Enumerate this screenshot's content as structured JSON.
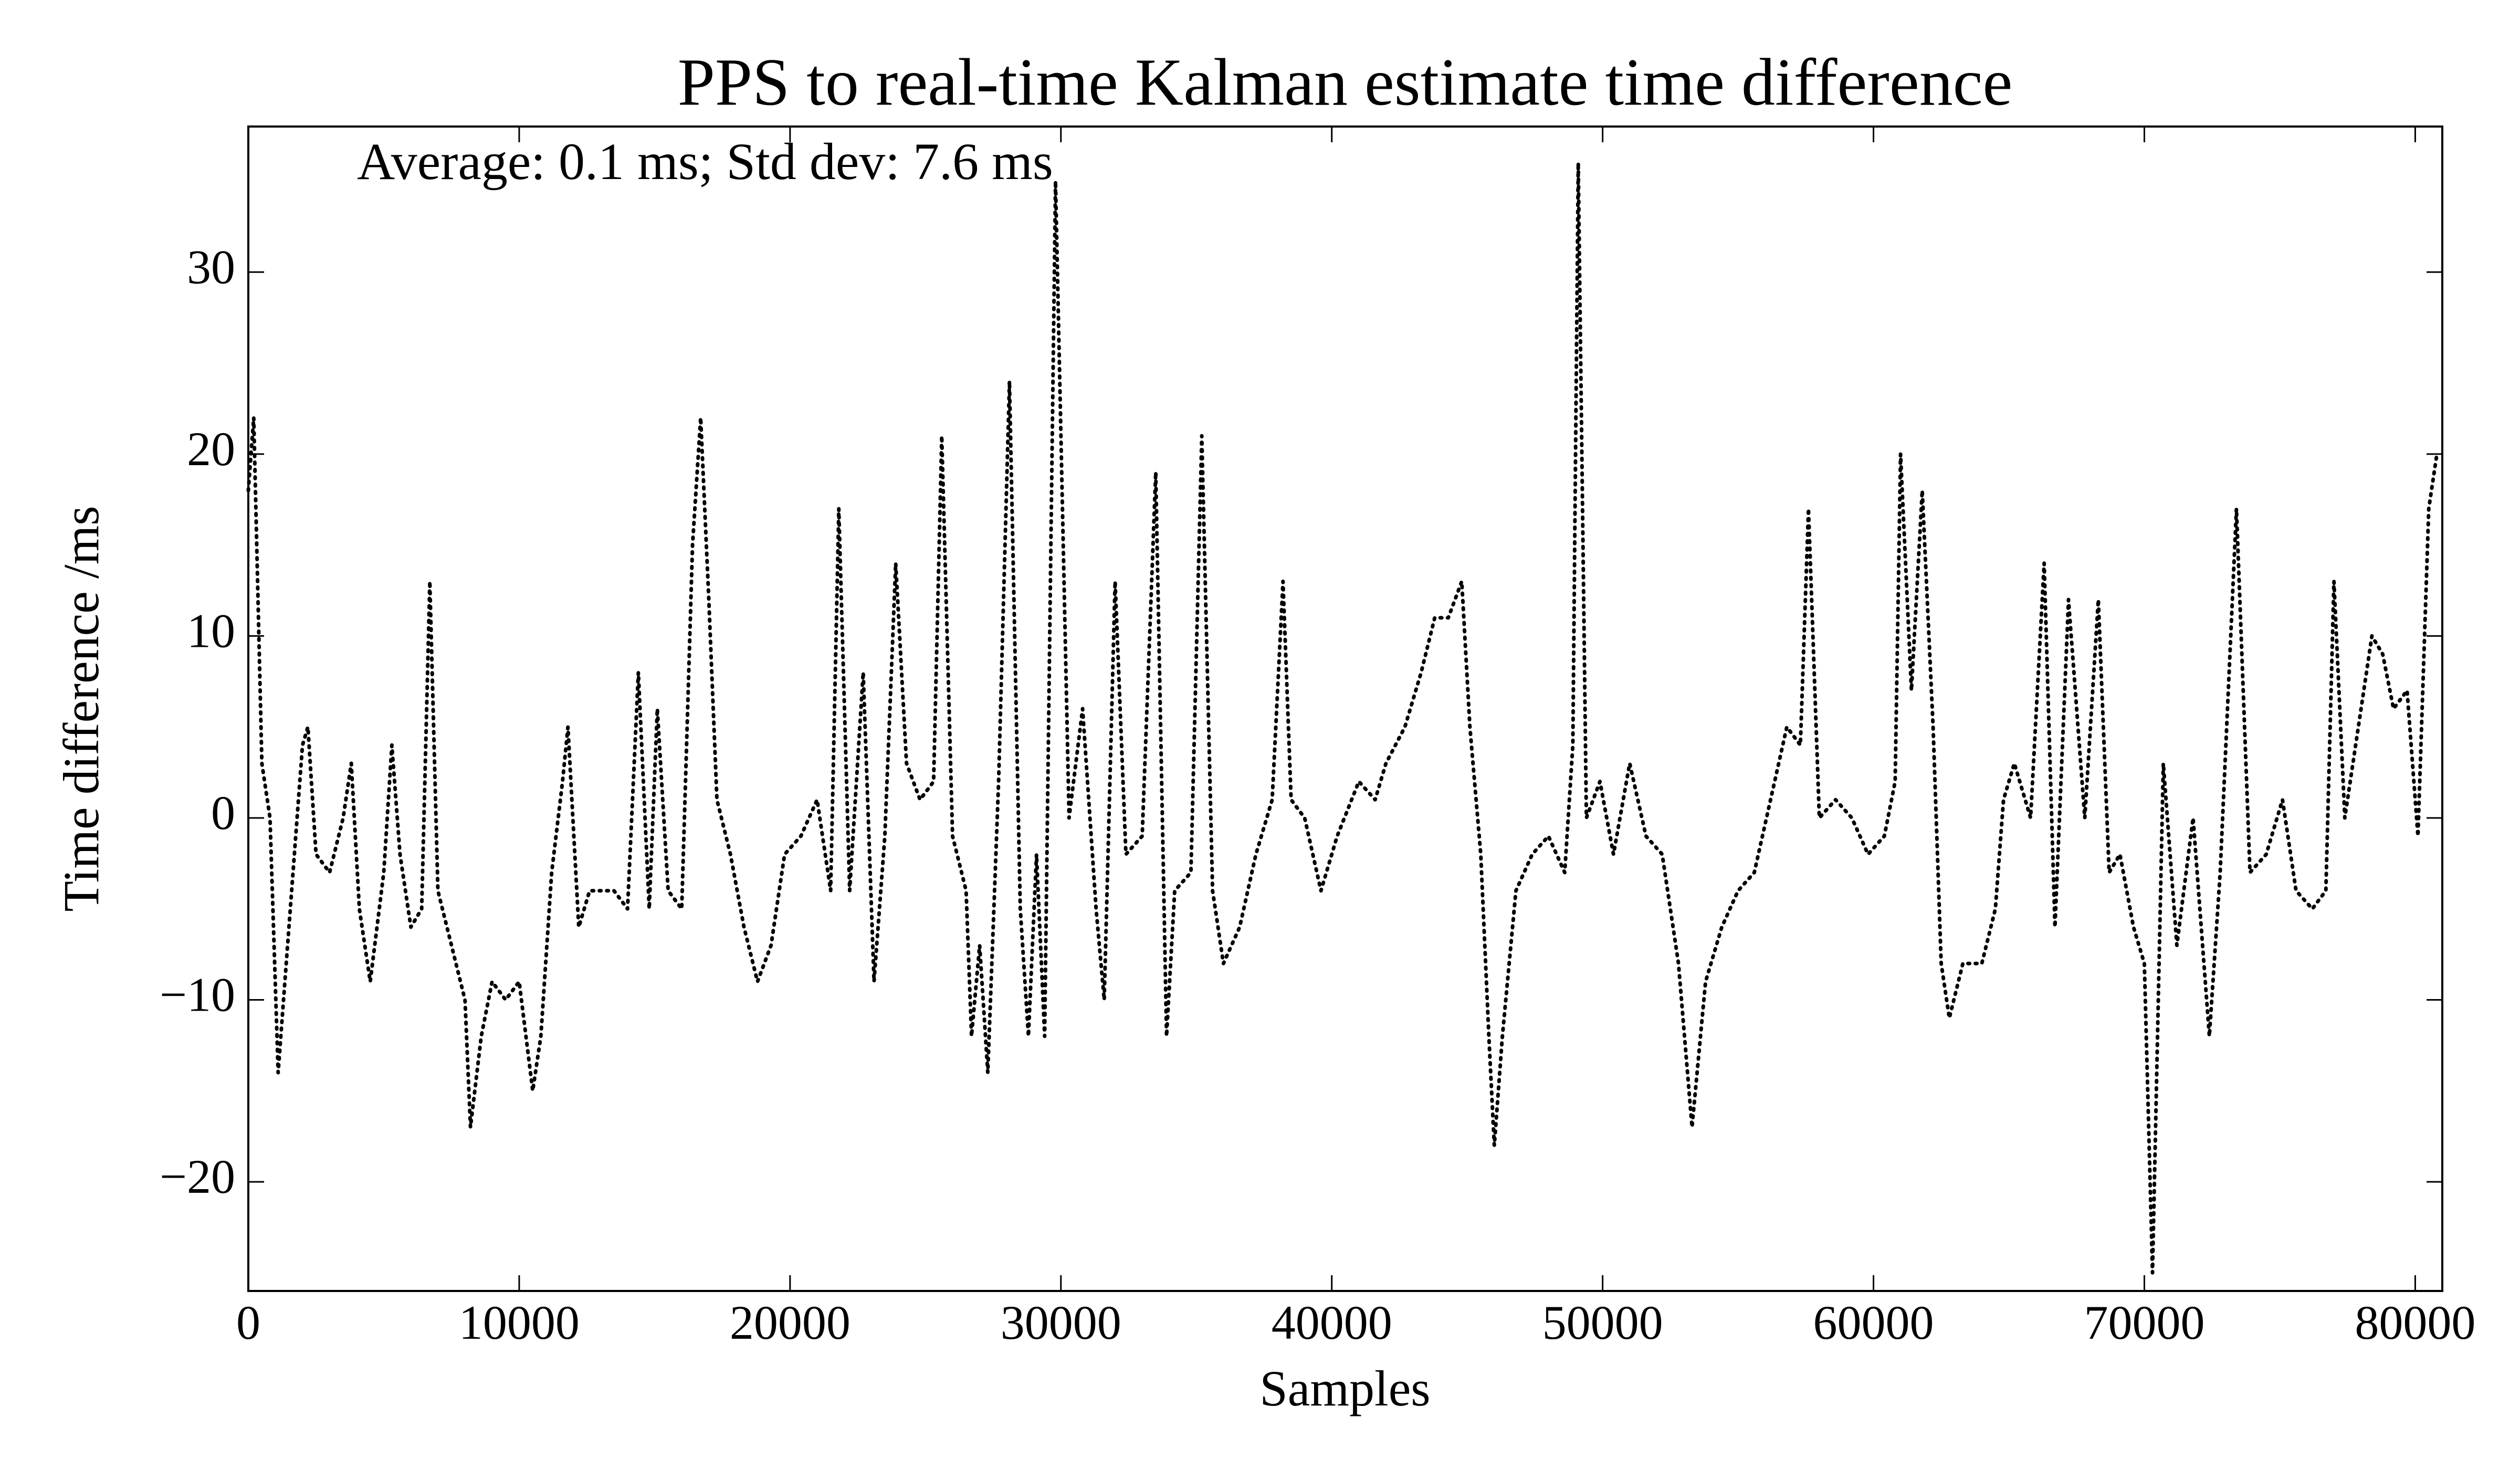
{
  "chart_data": {
    "type": "line",
    "line_style": "dotted",
    "title": "PPS to real-time Kalman estimate time difference",
    "annotation": "Average: 0.1 ms; Std dev: 7.6 ms",
    "x_label": "Samples",
    "y_label": "Time difference /ms",
    "color": "#000000",
    "xlim": [
      0,
      81000
    ],
    "ylim": [
      -26,
      38
    ],
    "xticks": [
      0,
      10000,
      20000,
      30000,
      40000,
      50000,
      60000,
      70000,
      80000
    ],
    "yticks": [
      {
        "value": -20,
        "label": "−20"
      },
      {
        "value": -10,
        "label": "−10"
      },
      0,
      10,
      20,
      30
    ],
    "x": [
      0,
      200,
      500,
      800,
      1100,
      1400,
      1700,
      2000,
      2200,
      2500,
      3000,
      3500,
      3800,
      4100,
      4500,
      5000,
      5300,
      5600,
      6000,
      6400,
      6700,
      7000,
      7500,
      8000,
      8200,
      8600,
      9000,
      9500,
      10000,
      10500,
      10800,
      11200,
      11600,
      11800,
      12200,
      12600,
      13000,
      13500,
      14000,
      14400,
      14800,
      15100,
      15500,
      16000,
      16400,
      16700,
      17000,
      17300,
      17800,
      18300,
      18800,
      19300,
      19800,
      20400,
      21000,
      21500,
      21800,
      22200,
      22700,
      23100,
      23500,
      23900,
      24300,
      24800,
      25300,
      25600,
      26000,
      26500,
      26700,
      27000,
      27300,
      27700,
      28100,
      28500,
      28800,
      29100,
      29400,
      29800,
      30300,
      30800,
      31300,
      31600,
      32000,
      32400,
      33000,
      33500,
      33900,
      34200,
      34800,
      35200,
      35600,
      36000,
      36600,
      37200,
      37800,
      38200,
      38500,
      39000,
      39600,
      40200,
      41000,
      41600,
      42000,
      42700,
      43300,
      43800,
      44300,
      44800,
      45100,
      45500,
      45800,
      46000,
      46300,
      46800,
      47400,
      48000,
      48600,
      48900,
      49100,
      49400,
      49900,
      50400,
      51000,
      51600,
      52200,
      52800,
      53300,
      53800,
      54400,
      55000,
      55600,
      56200,
      56800,
      57300,
      57600,
      58000,
      58600,
      59200,
      59800,
      60400,
      60800,
      61000,
      61400,
      61800,
      62200,
      62500,
      62800,
      63300,
      64000,
      64500,
      64800,
      65200,
      65800,
      66300,
      66700,
      67200,
      67800,
      68300,
      68700,
      69100,
      69600,
      70000,
      70300,
      70700,
      71200,
      71800,
      72400,
      72800,
      73400,
      73900,
      74500,
      75100,
      75600,
      76200,
      76700,
      77000,
      77400,
      77900,
      78400,
      78800,
      79200,
      79700,
      80100,
      80500,
      80800
    ],
    "values": [
      18,
      22,
      3,
      0,
      -14,
      -8,
      -2,
      4,
      5,
      -2,
      -3,
      0,
      3,
      -5,
      -9,
      -3,
      4,
      -2,
      -6,
      -5,
      13,
      -4,
      -7,
      -10,
      -17,
      -12,
      -9,
      -10,
      -9,
      -15,
      -12,
      -3,
      2,
      5,
      -6,
      -4,
      -4,
      -4,
      -5,
      8,
      -5,
      6,
      -4,
      -5,
      15,
      22,
      12,
      1,
      -2,
      -6,
      -9,
      -7,
      -2,
      -1,
      1,
      -4,
      17,
      -4,
      8,
      -9,
      -1,
      14,
      3,
      1,
      2,
      21,
      -1,
      -4,
      -12,
      -7,
      -14,
      2,
      24,
      -5,
      -12,
      -2,
      -12,
      35,
      0,
      6,
      -5,
      -10,
      13,
      -2,
      -1,
      19,
      -12,
      -4,
      -3,
      21,
      -4,
      -8,
      -6,
      -2,
      1,
      13,
      1,
      0,
      -4,
      -1,
      2,
      1,
      3,
      5,
      8,
      11,
      11,
      13,
      5,
      -2,
      -12,
      -18,
      -12,
      -4,
      -2,
      -1,
      -3,
      4,
      36,
      0,
      2,
      -2,
      3,
      -1,
      -2,
      -8,
      -17,
      -9,
      -6,
      -4,
      -3,
      1,
      5,
      4,
      17,
      0,
      1,
      0,
      -2,
      -1,
      2,
      20,
      7,
      18,
      5,
      -8,
      -11,
      -8,
      -8,
      -5,
      1,
      3,
      0,
      14,
      -6,
      12,
      0,
      12,
      -3,
      -2,
      -6,
      -8,
      -25,
      3,
      -7,
      0,
      -12,
      -3,
      17,
      -3,
      -2,
      1,
      -4,
      -5,
      -4,
      13,
      0,
      5,
      10,
      9,
      6,
      7,
      -1,
      17,
      20
    ]
  }
}
